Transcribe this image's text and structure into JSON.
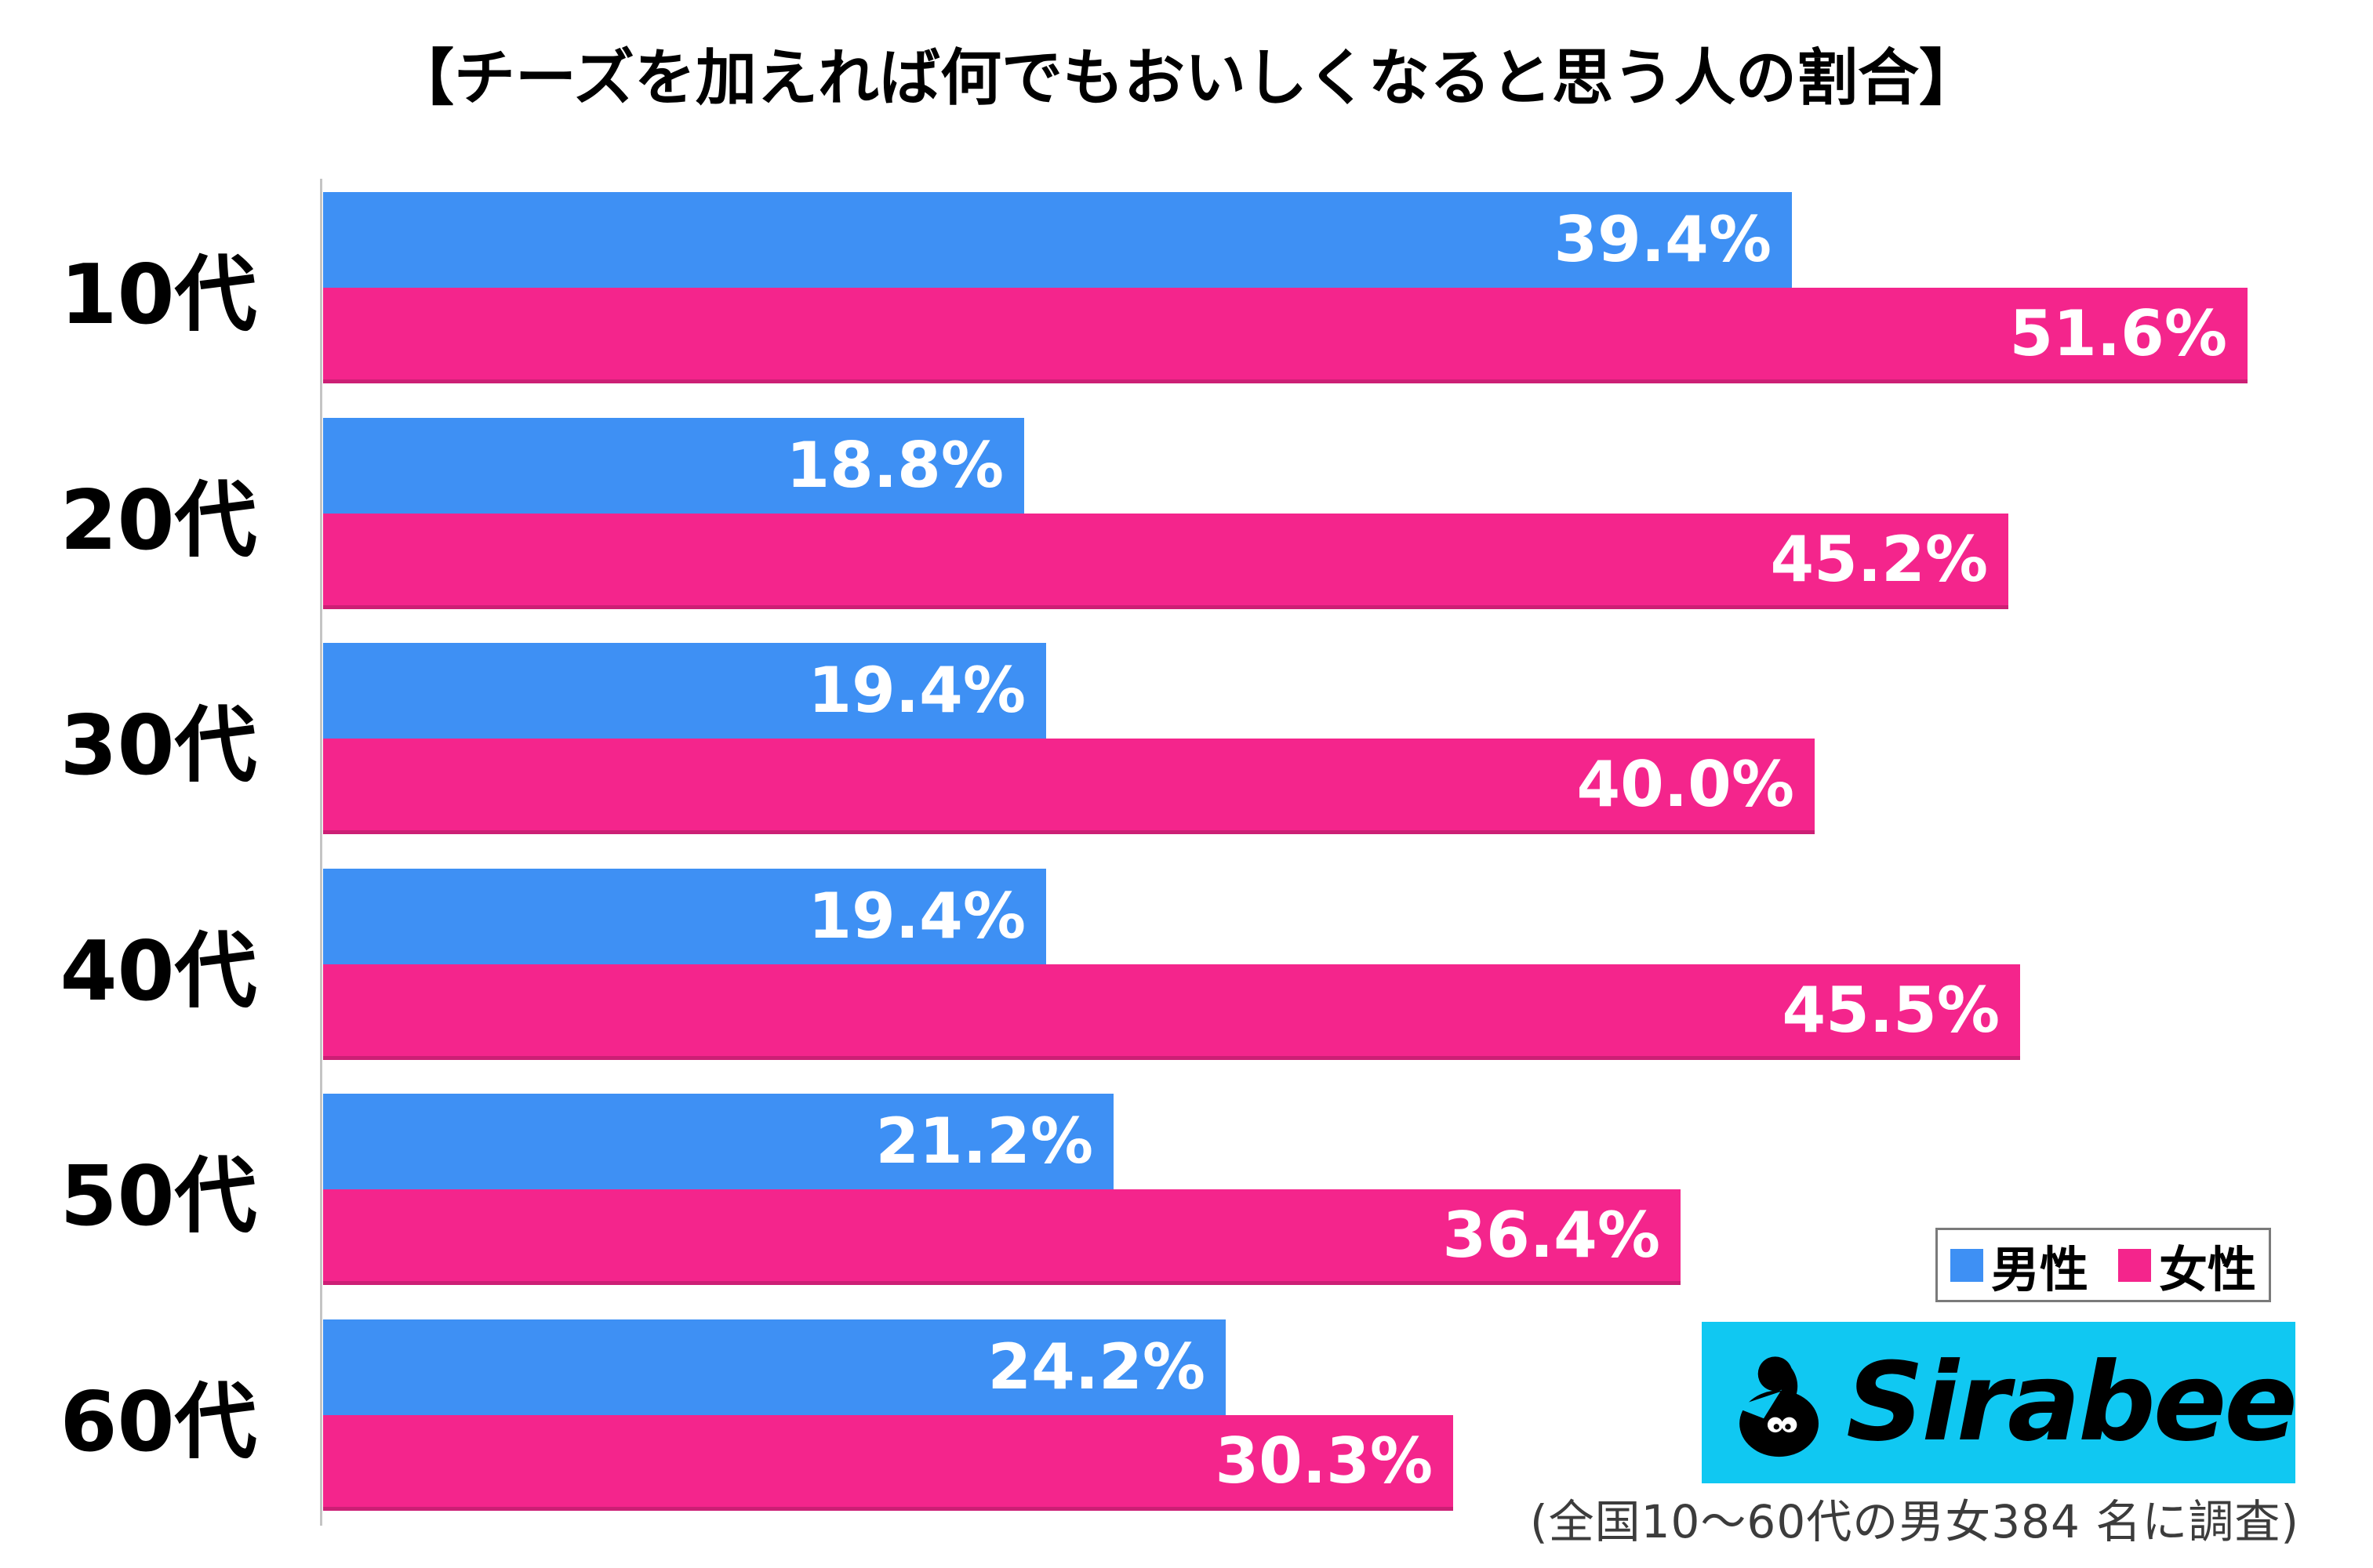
{
  "title": "【チーズを加えれば何でもおいしくなると思う人の割合】",
  "chart_data": {
    "type": "bar",
    "orientation": "horizontal",
    "title": "【チーズを加えれば何でもおいしくなると思う人の割合】",
    "categories": [
      "10代",
      "20代",
      "30代",
      "40代",
      "50代",
      "60代"
    ],
    "series": [
      {
        "name": "男性",
        "color": "#3E90F4",
        "values": [
          39.4,
          18.8,
          19.4,
          19.4,
          21.2,
          24.2
        ]
      },
      {
        "name": "女性",
        "color": "#F4258C",
        "values": [
          51.6,
          45.2,
          40.0,
          45.5,
          36.4,
          30.3
        ]
      }
    ],
    "value_labels": [
      [
        "39.4%",
        "18.8%",
        "19.4%",
        "19.4%",
        "21.2%",
        "24.2%"
      ],
      [
        "51.6%",
        "45.2%",
        "40.0%",
        "45.5%",
        "36.4%",
        "30.3%"
      ]
    ],
    "xlim": [
      0,
      54.2
    ],
    "grid": false,
    "axis_color": "#C4C4C4",
    "value_label_color": "#FFFFFF",
    "legend_position": "bottom-right"
  },
  "legend": {
    "items": [
      {
        "label": "男性",
        "color": "#3E90F4"
      },
      {
        "label": "女性",
        "color": "#F4258C"
      }
    ]
  },
  "logo": {
    "text": "Sirabee",
    "background": "#10C8F2",
    "icon_color": "#000000"
  },
  "footnote": "(全国10〜60代の男女384 名に調査)"
}
